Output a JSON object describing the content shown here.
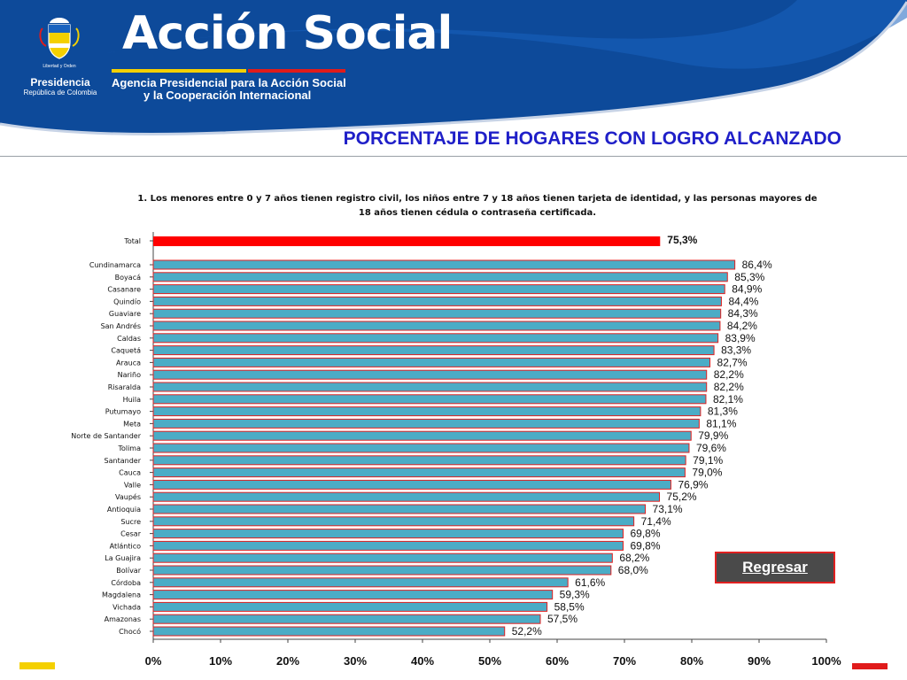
{
  "header": {
    "crest_motto": "Libertad y Orden",
    "presidencia": "Presidencia",
    "republica": "República de Colombia",
    "logo": "Acción Social",
    "agency_line1": "Agencia Presidencial para la Acción Social",
    "agency_line2": "y la Cooperación Internacional"
  },
  "page_title": "PORCENTAJE DE HOGARES CON LOGRO ALCANZADO",
  "regresar_label": "Regresar",
  "colors": {
    "header_blue": "#0d4a9a",
    "title_blue": "#1f1fc8",
    "bar_fill": "#4bacc6",
    "bar_border": "#e02020",
    "total_bar": "#ff0000"
  },
  "chart_data": {
    "type": "bar",
    "orientation": "horizontal",
    "title_lines": [
      "1. Los menores entre 0 y 7 años tienen registro civil, los niños entre 7 y 18 años tienen tarjeta de identidad, y las personas mayores de",
      "18 años tienen cédula o contraseña certificada."
    ],
    "total": {
      "category": "Total",
      "value": 75.3,
      "label": "75,3%"
    },
    "categories": [
      "Cundinamarca",
      "Boyacá",
      "Casanare",
      "Quindío",
      "Guaviare",
      "San Andrés",
      "Caldas",
      "Caquetá",
      "Arauca",
      "Nariño",
      "Risaralda",
      "Huila",
      "Putumayo",
      "Meta",
      "Norte de Santander",
      "Tolima",
      "Santander",
      "Cauca",
      "Valle",
      "Vaupés",
      "Antioquia",
      "Sucre",
      "Cesar",
      "Atlántico",
      "La Guajira",
      "Bolívar",
      "Córdoba",
      "Magdalena",
      "Vichada",
      "Amazonas",
      "Chocó"
    ],
    "values": [
      86.4,
      85.3,
      84.9,
      84.4,
      84.3,
      84.2,
      83.9,
      83.3,
      82.7,
      82.2,
      82.2,
      82.1,
      81.3,
      81.1,
      79.9,
      79.6,
      79.1,
      79.0,
      76.9,
      75.2,
      73.1,
      71.4,
      69.8,
      69.8,
      68.2,
      68.0,
      61.6,
      59.3,
      58.5,
      57.5,
      52.2
    ],
    "value_labels": [
      "86,4%",
      "85,3%",
      "84,9%",
      "84,4%",
      "84,3%",
      "84,2%",
      "83,9%",
      "83,3%",
      "82,7%",
      "82,2%",
      "82,2%",
      "82,1%",
      "81,3%",
      "81,1%",
      "79,9%",
      "79,6%",
      "79,1%",
      "79,0%",
      "76,9%",
      "75,2%",
      "73,1%",
      "71,4%",
      "69,8%",
      "69,8%",
      "68,2%",
      "68,0%",
      "61,6%",
      "59,3%",
      "58,5%",
      "57,5%",
      "52,2%"
    ],
    "xlim": [
      0,
      100
    ],
    "x_ticks": [
      "0%",
      "10%",
      "20%",
      "30%",
      "40%",
      "50%",
      "60%",
      "70%",
      "80%",
      "90%",
      "100%"
    ],
    "grid": false
  }
}
